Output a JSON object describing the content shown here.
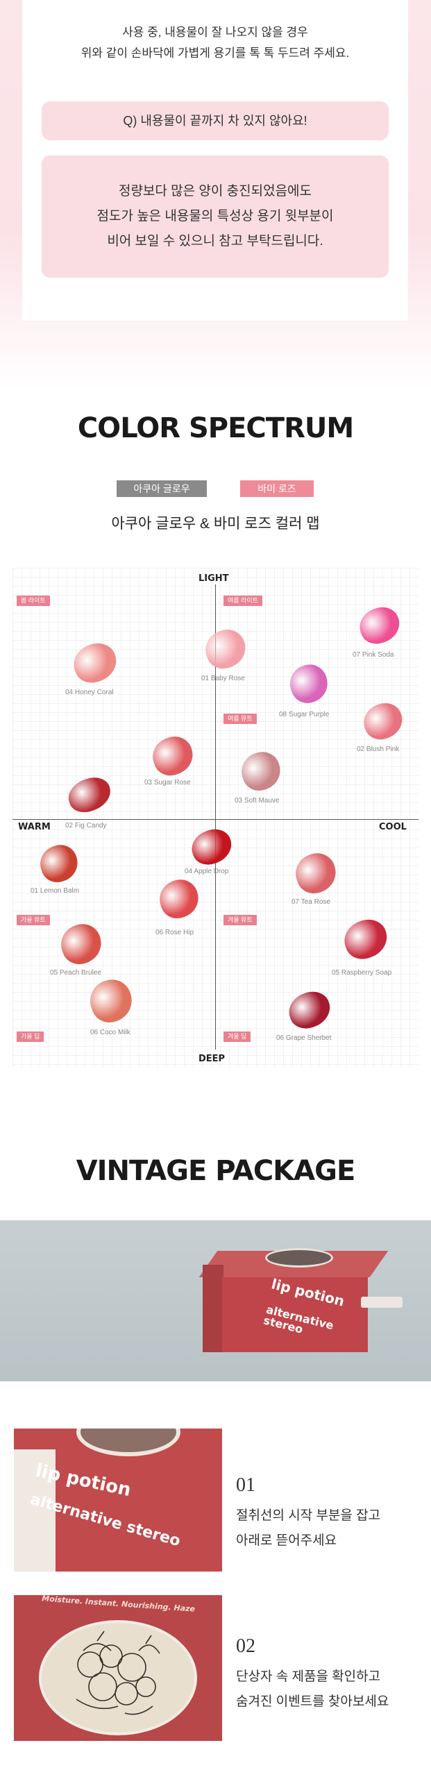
{
  "notice": {
    "line1": "사용 중, 내용물이 잘 나오지 않을 경우",
    "line2": "위와 같이 손바닥에 가볍게 용기를 톡 톡 두드려 주세요."
  },
  "faq": {
    "question": "Q) 내용물이 끝까지 차 있지 않아요!",
    "answer_lines": [
      "정량보다 많은 양이 충진되었음에도",
      "점도가 높은 내용물의 특성상 용기 윗부분이",
      "비어 보일 수 있으니 참고 부탁드립니다."
    ]
  },
  "spectrum": {
    "title": "COLOR SPECTRUM",
    "tags": [
      {
        "label": "아쿠아 글로우",
        "color": "#8a8a8a"
      },
      {
        "label": "바미 로즈",
        "color": "#ee8b97"
      }
    ],
    "subtitle": "아쿠아 글로우 & 바미 로즈 컬러 맵",
    "axes": {
      "top": "LIGHT",
      "bottom": "DEEP",
      "left": "WARM",
      "right": "COOL"
    },
    "seasons": [
      "봄 라이트",
      "여름 라이트",
      "여름 뮤트",
      "가을 뮤트",
      "겨울 뮤트",
      "가을 딥",
      "겨울 딥"
    ],
    "swatches": [
      {
        "name": "04 Honey Coral",
        "color": "#ee8a86"
      },
      {
        "name": "01 Baby Rose",
        "color": "#f3a1a8"
      },
      {
        "name": "07 Pink Soda",
        "color": "#ee4f93"
      },
      {
        "name": "08 Sugar Purple",
        "color": "#d964b8"
      },
      {
        "name": "02 Blush Pink",
        "color": "#e8727f"
      },
      {
        "name": "03 Sugar Rose",
        "color": "#df5a5e"
      },
      {
        "name": "03 Soft Mauve",
        "color": "#c98588"
      },
      {
        "name": "02 Fig Candy",
        "color": "#b82a32"
      },
      {
        "name": "04 Apple Drop",
        "color": "#c4151f"
      },
      {
        "name": "01 Lemon Balm",
        "color": "#cb3f2f"
      },
      {
        "name": "07 Tea Rose",
        "color": "#da6166"
      },
      {
        "name": "06 Rose Hip",
        "color": "#e04a4e"
      },
      {
        "name": "05 Peach Brulee",
        "color": "#d9524a"
      },
      {
        "name": "05 Raspberry Soap",
        "color": "#c8283d"
      },
      {
        "name": "06 Coco Milk",
        "color": "#e0735f"
      },
      {
        "name": "06 Grape Sherbet",
        "color": "#a51a2e"
      }
    ]
  },
  "package": {
    "title": "VINTAGE PACKAGE",
    "box_brand": "lip potion",
    "box_sub": "alternative stereo",
    "steps": [
      {
        "number": "01",
        "lines": [
          "절취선의 시작 부분을 잡고",
          "아래로 뜯어주세요"
        ]
      },
      {
        "number": "02",
        "lines": [
          "단상자 속 제품을 확인하고",
          "숨겨진 이벤트를 찾아보세요"
        ]
      }
    ],
    "step2_box_text": "Moisture. Instant. Nourishing. Haze"
  }
}
